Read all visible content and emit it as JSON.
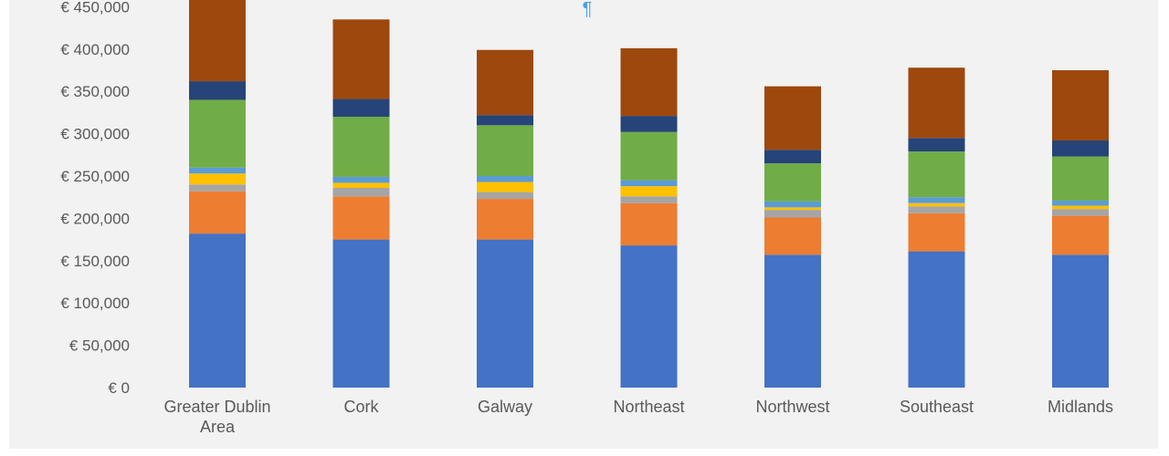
{
  "chart_data": {
    "type": "bar",
    "stacked": true,
    "categories": [
      "Greater Dublin Area",
      "Cork",
      "Galway",
      "Northeast",
      "Northwest",
      "Southeast",
      "Midlands"
    ],
    "category_lines": [
      [
        "Greater Dublin",
        "Area"
      ],
      [
        "Cork"
      ],
      [
        "Galway"
      ],
      [
        "Northeast"
      ],
      [
        "Northwest"
      ],
      [
        "Southeast"
      ],
      [
        "Midlands"
      ]
    ],
    "series": [
      {
        "color": "#4472c4",
        "values": [
          182000,
          175000,
          175000,
          168000,
          157000,
          161000,
          157000
        ]
      },
      {
        "color": "#ed7d31",
        "values": [
          50000,
          51000,
          48000,
          50000,
          44000,
          45000,
          46000
        ]
      },
      {
        "color": "#a5a5a5",
        "values": [
          8000,
          10000,
          8000,
          8000,
          9000,
          8000,
          8000
        ]
      },
      {
        "color": "#ffc000",
        "values": [
          13000,
          6000,
          12000,
          12000,
          3000,
          4000,
          4000
        ]
      },
      {
        "color": "#5b9bd5",
        "values": [
          7000,
          7000,
          7000,
          7000,
          7000,
          7000,
          6000
        ]
      },
      {
        "color": "#70ad47",
        "values": [
          80000,
          71000,
          60000,
          57000,
          45000,
          54000,
          52000
        ]
      },
      {
        "color": "#264478",
        "values": [
          22000,
          21000,
          12000,
          19000,
          16000,
          16000,
          19000
        ]
      },
      {
        "color": "#9e480e",
        "values": [
          98000,
          94000,
          77000,
          80000,
          75000,
          83000,
          83000
        ]
      }
    ],
    "yticks": [
      "€ 0",
      "€ 50,000",
      "€ 100,000",
      "€ 150,000",
      "€ 200,000",
      "€ 250,000",
      "€ 300,000",
      "€ 350,000",
      "€ 400,000",
      "€ 450,000"
    ],
    "ylim": [
      0,
      450000
    ],
    "grid": false,
    "legend": "none",
    "title": "",
    "xlabel": "",
    "ylabel": ""
  },
  "marker": "¶"
}
